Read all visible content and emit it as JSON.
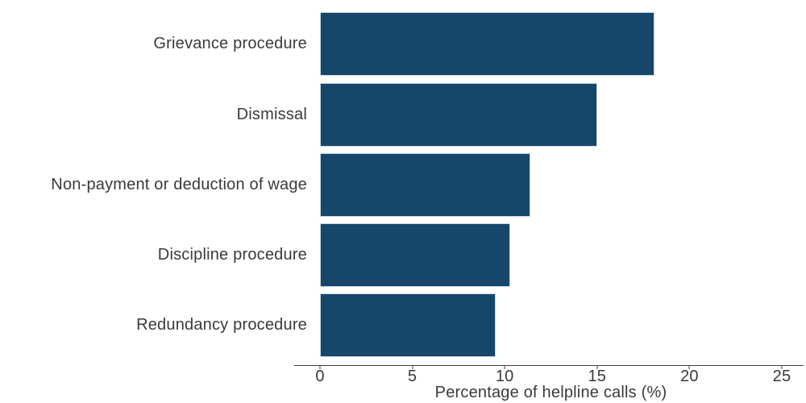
{
  "chart_data": {
    "type": "bar",
    "orientation": "horizontal",
    "title": "",
    "xlabel": "Percentage of helpline calls (%)",
    "ylabel": "",
    "categories": [
      "Grievance procedure",
      "Dismissal",
      "Non-payment or deduction of wage",
      "Discipline procedure",
      "Redundancy procedure"
    ],
    "values": [
      18.1,
      15.0,
      11.4,
      10.3,
      9.5
    ],
    "xlim": [
      0,
      25
    ],
    "xticks": [
      0,
      5,
      10,
      15,
      20,
      25
    ],
    "grid": false,
    "legend": false,
    "colors": {
      "bar_fill": "#17466B",
      "bar_border": "#CCD9E5",
      "axis_line": "#404040",
      "text": "#3A3A3A",
      "background": "#FFFFFF"
    }
  }
}
